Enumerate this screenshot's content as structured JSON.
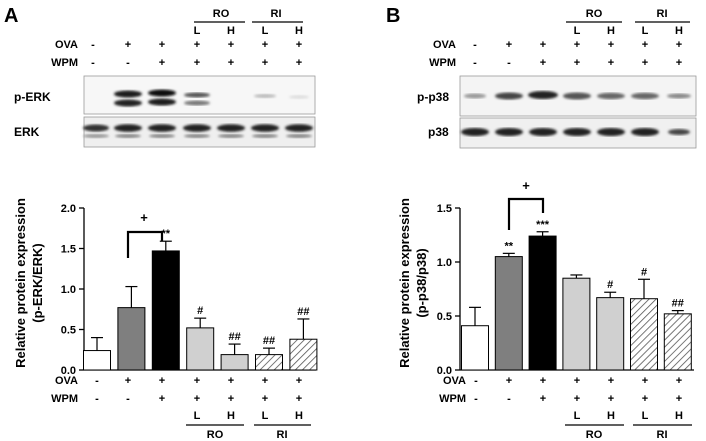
{
  "panels": [
    {
      "letter": "A",
      "blot_labels": [
        "p-ERK",
        "ERK"
      ],
      "ylabel_line1": "Relative protein expression",
      "ylabel_line2": "(p-ERK/ERK)",
      "significance_bracket": "+",
      "yticks": [
        "0.0",
        "0.5",
        "1.0",
        "1.5",
        "2.0"
      ]
    },
    {
      "letter": "B",
      "blot_labels": [
        "p-p38",
        "p38"
      ],
      "ylabel_line1": "Relative protein expression",
      "ylabel_line2": "(p-p38/p38)",
      "significance_bracket": "+",
      "yticks": [
        "0.0",
        "0.5",
        "1.0",
        "1.5"
      ]
    }
  ],
  "treatment_rows": {
    "ova": {
      "label": "OVA",
      "signs": [
        "-",
        "+",
        "+",
        "+",
        "+",
        "+",
        "+"
      ]
    },
    "wpm": {
      "label": "WPM",
      "signs": [
        "-",
        "-",
        "+",
        "+",
        "+",
        "+",
        "+"
      ]
    },
    "dose": [
      "",
      "",
      "",
      "L",
      "H",
      "L",
      "H"
    ],
    "groups": [
      "RO",
      "RI"
    ]
  },
  "colors": {
    "bar_fills": [
      "#ffffff",
      "#7f7f7f",
      "#000000",
      "#d0d0d0",
      "#d0d0d0",
      "hatch",
      "hatch"
    ],
    "hatch_stroke": "#555555"
  },
  "chart_data": [
    {
      "type": "bar",
      "categories": [
        "1",
        "2",
        "3",
        "4",
        "5",
        "6",
        "7"
      ],
      "values": [
        0.24,
        0.77,
        1.47,
        0.52,
        0.19,
        0.19,
        0.38
      ],
      "errors": [
        0.16,
        0.26,
        0.12,
        0.12,
        0.13,
        0.08,
        0.25
      ],
      "annotations": [
        "",
        "",
        "**",
        "#",
        "##",
        "##",
        "##"
      ],
      "ylim": [
        0,
        2.0
      ],
      "ylabel": "Relative protein expression (p-ERK/ERK)"
    },
    {
      "type": "bar",
      "categories": [
        "1",
        "2",
        "3",
        "4",
        "5",
        "6",
        "7"
      ],
      "values": [
        0.41,
        1.05,
        1.24,
        0.85,
        0.67,
        0.66,
        0.52
      ],
      "errors": [
        0.17,
        0.03,
        0.04,
        0.03,
        0.05,
        0.18,
        0.03
      ],
      "annotations": [
        "",
        "**",
        "***",
        "",
        "#",
        "#",
        "##"
      ],
      "ylim": [
        0,
        1.5
      ],
      "ylabel": "Relative protein expression (p-p38/p38)"
    }
  ]
}
